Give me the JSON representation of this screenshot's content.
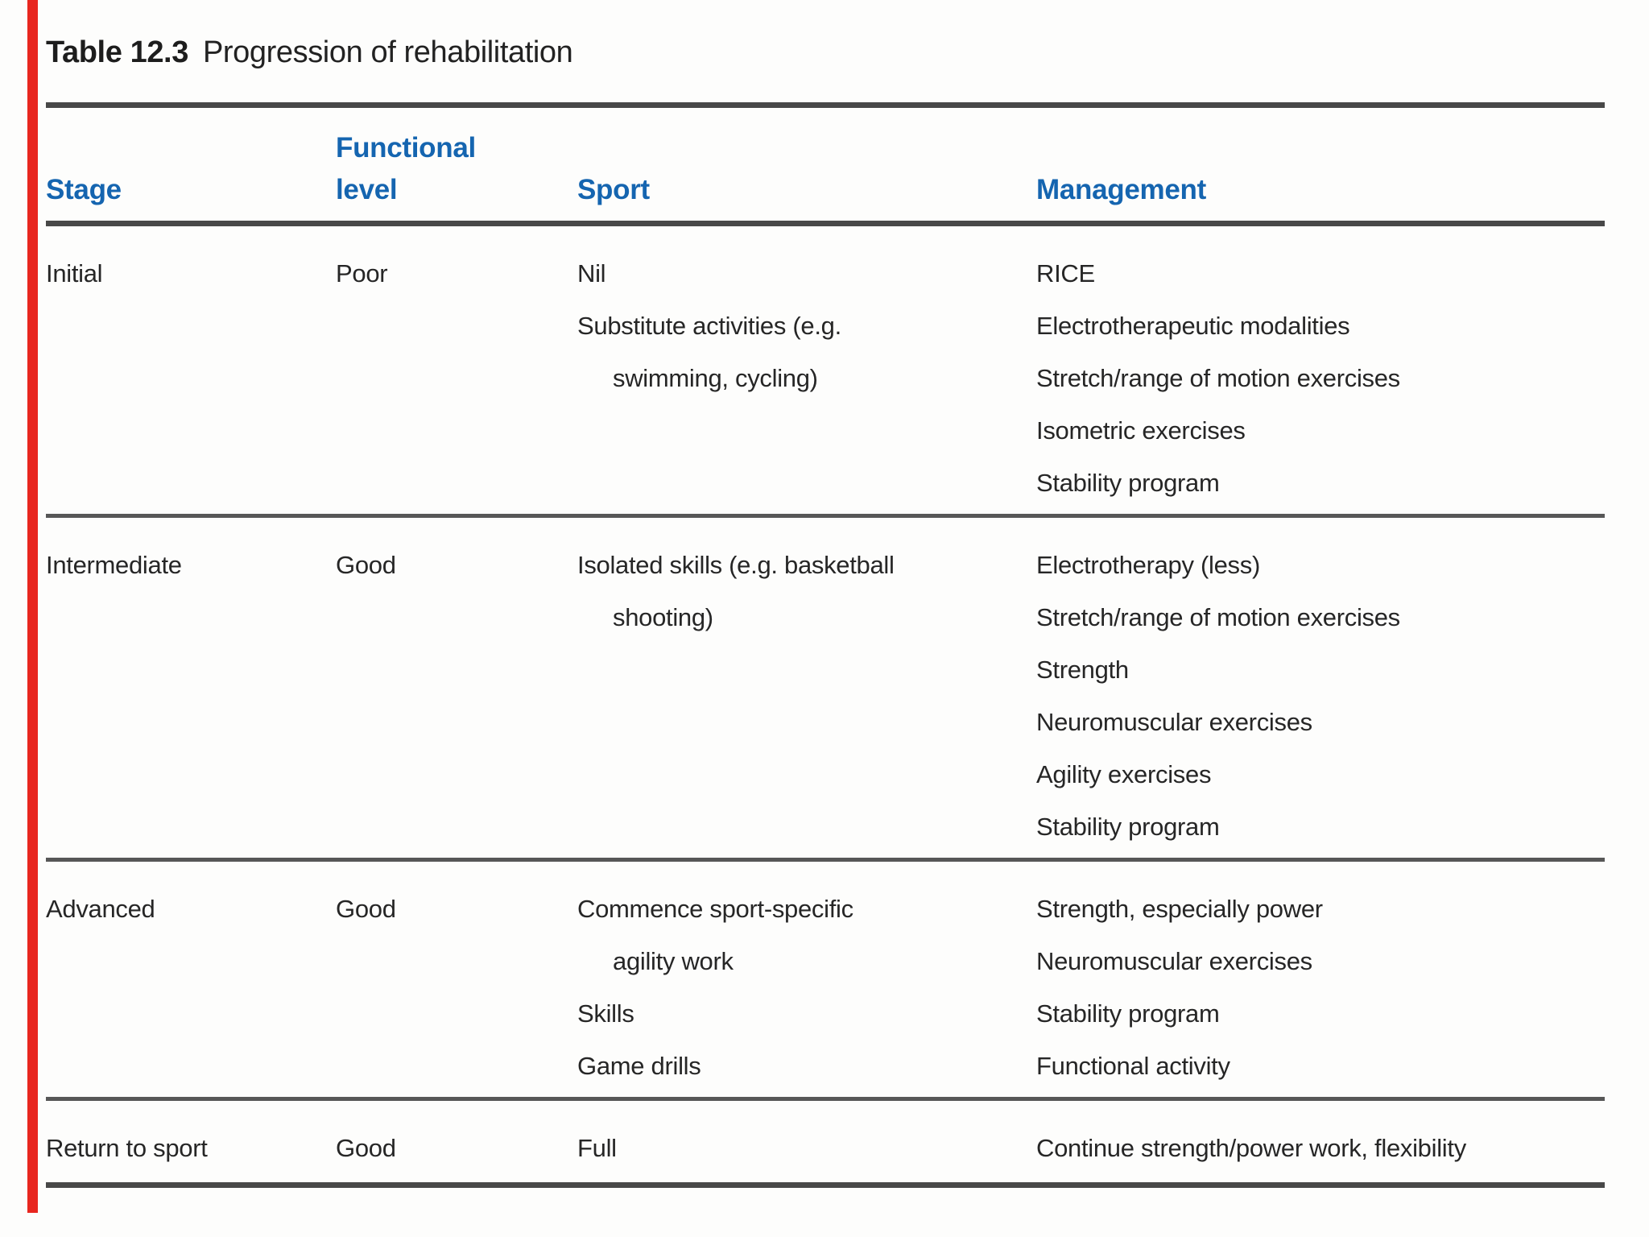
{
  "title": {
    "label": "Table 12.3",
    "caption": "Progression of rehabilitation"
  },
  "colors": {
    "header_blue": "#1565b0",
    "rule_gray": "#484848",
    "red_bar": "#e8261f",
    "body_text": "#262626"
  },
  "table": {
    "headers": {
      "stage": "Stage",
      "functional_level_line1": "Functional",
      "functional_level_line2": "level",
      "sport": "Sport",
      "management": "Management"
    },
    "rows": [
      {
        "stage": "Initial",
        "functional_level": "Poor",
        "sport": [
          "Nil",
          "Substitute activities (e.g.",
          "swimming, cycling)"
        ],
        "management": [
          "RICE",
          "Electrotherapeutic modalities",
          "Stretch/range of motion exercises",
          "Isometric exercises",
          "Stability program"
        ]
      },
      {
        "stage": "Intermediate",
        "functional_level": "Good",
        "sport": [
          "Isolated skills (e.g. basketball",
          "shooting)"
        ],
        "management": [
          "Electrotherapy (less)",
          "Stretch/range of motion exercises",
          "Strength",
          "Neuromuscular exercises",
          "Agility exercises",
          "Stability program"
        ]
      },
      {
        "stage": "Advanced",
        "functional_level": "Good",
        "sport": [
          "Commence sport-specific",
          "agility work",
          "Skills",
          "Game drills"
        ],
        "management": [
          "Strength, especially power",
          "Neuromuscular exercises",
          "Stability program",
          "Functional activity"
        ]
      },
      {
        "stage": "Return to sport",
        "functional_level": "Good",
        "sport": [
          "Full"
        ],
        "management": [
          "Continue strength/power work, flexibility"
        ]
      }
    ]
  }
}
